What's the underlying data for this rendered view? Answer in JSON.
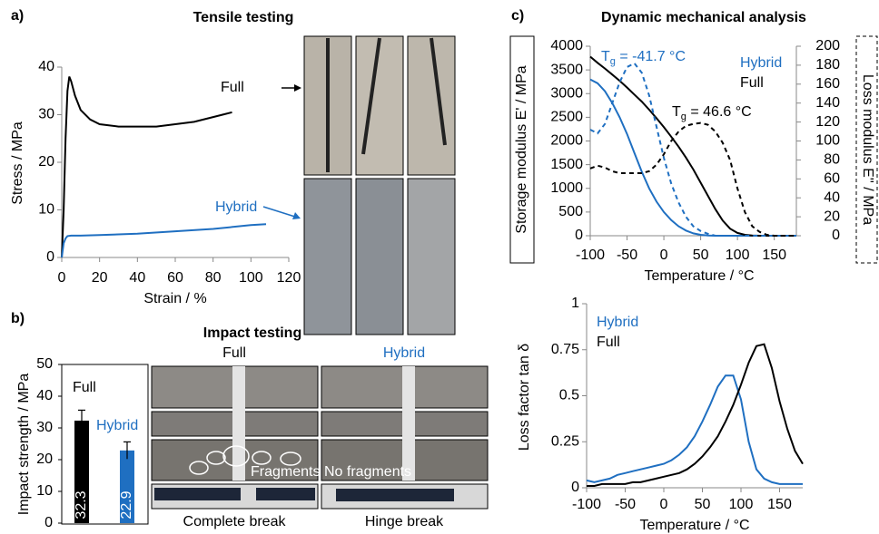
{
  "chart_data": [
    {
      "type": "line",
      "panel": "a)",
      "title": "Tensile testing",
      "xlabel": "Strain / %",
      "ylabel": "Stress / MPa",
      "xlim": [
        0,
        120
      ],
      "xticks": [
        0,
        20,
        40,
        60,
        80,
        100,
        120
      ],
      "ylim": [
        0,
        40
      ],
      "yticks": [
        0,
        10,
        20,
        30,
        40
      ],
      "series": [
        {
          "name": "Full",
          "color": "#000000",
          "x": [
            0,
            1,
            2,
            3,
            4,
            5,
            7,
            10,
            15,
            20,
            30,
            40,
            50,
            60,
            70,
            80,
            85,
            90
          ],
          "values": [
            0,
            10,
            25,
            35,
            38,
            37,
            34,
            31,
            29,
            28,
            27.5,
            27.5,
            27.5,
            28,
            28.5,
            29.5,
            30,
            30.5
          ]
        },
        {
          "name": "Hybrid",
          "color": "#1f6fc1",
          "x": [
            0,
            1,
            2,
            3,
            5,
            10,
            20,
            40,
            60,
            80,
            100,
            108
          ],
          "values": [
            0,
            3,
            4,
            4.5,
            4.6,
            4.6,
            4.7,
            5,
            5.5,
            6,
            6.8,
            7
          ]
        }
      ]
    },
    {
      "type": "bar",
      "panel": "b)",
      "title": "Impact testing",
      "ylabel": "Impact strength / MPa",
      "categories": [
        "Full",
        "Hybrid"
      ],
      "values": [
        32.3,
        22.9
      ],
      "errors": [
        3.3,
        2.7
      ],
      "colors": [
        "#000000",
        "#1f6fc1"
      ],
      "ylim": [
        0,
        50
      ],
      "yticks": [
        0,
        10,
        20,
        30,
        40,
        50
      ],
      "photo_labels": {
        "columns": [
          "Full",
          "Hybrid"
        ],
        "fragments": [
          "Fragments",
          "No fragments"
        ],
        "captions": [
          "Complete break",
          "Hinge break"
        ]
      }
    },
    {
      "type": "line",
      "panel": "c)",
      "title": "Dynamic mechanical analysis",
      "xlabel": "Temperature / °C",
      "ylabel": "Storage modulus E' / MPa",
      "y2label": "Loss modulus E'' / MPa",
      "x": [
        -100,
        -90,
        -80,
        -70,
        -60,
        -50,
        -40,
        -30,
        -20,
        -10,
        0,
        10,
        20,
        30,
        40,
        50,
        60,
        70,
        80,
        90,
        100,
        110,
        120,
        130,
        140,
        150,
        160,
        170,
        180
      ],
      "xlim": [
        -100,
        180
      ],
      "xticks": [
        -100,
        -50,
        0,
        50,
        100,
        150
      ],
      "ylim": [
        0,
        4000
      ],
      "yticks": [
        0,
        500,
        1000,
        1500,
        2000,
        2500,
        3000,
        3500,
        4000
      ],
      "y2lim": [
        0,
        200
      ],
      "y2ticks": [
        0,
        20,
        40,
        60,
        80,
        100,
        120,
        140,
        160,
        180,
        200
      ],
      "series": [
        {
          "name": "Hybrid",
          "color": "#1f6fc1",
          "values": [
            3300,
            3220,
            3050,
            2800,
            2500,
            2150,
            1750,
            1350,
            1000,
            720,
            500,
            330,
            200,
            110,
            50,
            20,
            5,
            0,
            0,
            0,
            0,
            0,
            0,
            0,
            0,
            0,
            0,
            0,
            0
          ]
        },
        {
          "name": "Full",
          "color": "#000000",
          "values": [
            3780,
            3650,
            3530,
            3400,
            3270,
            3130,
            2980,
            2830,
            2660,
            2480,
            2290,
            2090,
            1880,
            1650,
            1400,
            1120,
            840,
            560,
            320,
            150,
            60,
            20,
            5,
            0,
            0,
            0,
            0,
            0,
            0
          ]
        },
        {
          "color": "#1f6fc1",
          "dash": true,
          "axis": "y2",
          "values": [
            112,
            108,
            118,
            140,
            162,
            178,
            182,
            172,
            148,
            115,
            82,
            55,
            35,
            20,
            10,
            5,
            2,
            0,
            0,
            0,
            0,
            0,
            0,
            0,
            0,
            0,
            0,
            0,
            0
          ]
        },
        {
          "color": "#000000",
          "dash": true,
          "axis": "y2",
          "values": [
            71,
            74,
            72,
            68,
            66,
            66,
            66,
            66,
            68,
            75,
            86,
            100,
            110,
            116,
            118,
            119,
            117,
            110,
            98,
            80,
            50,
            25,
            10,
            4,
            1,
            0,
            0,
            0,
            0
          ]
        }
      ],
      "annotations": [
        {
          "text": "T",
          "sub": "g",
          "rest": " = -41.7 °C",
          "color": "#1f6fc1"
        },
        {
          "text": "T",
          "sub": "g",
          "rest": " = 46.6 °C",
          "color": "#000000"
        }
      ]
    },
    {
      "type": "line",
      "xlabel": "Temperature / °C",
      "ylabel": "Loss factor tan δ",
      "x": [
        -100,
        -90,
        -80,
        -70,
        -60,
        -50,
        -40,
        -30,
        -20,
        -10,
        0,
        10,
        20,
        30,
        40,
        50,
        60,
        70,
        80,
        90,
        100,
        110,
        120,
        130,
        140,
        150,
        160,
        170,
        180
      ],
      "xlim": [
        -100,
        180
      ],
      "xticks": [
        -100,
        -50,
        0,
        50,
        100,
        150
      ],
      "ylim": [
        0,
        1
      ],
      "yticks": [
        0,
        0.25,
        0.5,
        0.75,
        1
      ],
      "series": [
        {
          "name": "Hybrid",
          "color": "#1f6fc1",
          "values": [
            0.04,
            0.03,
            0.04,
            0.05,
            0.07,
            0.08,
            0.09,
            0.1,
            0.11,
            0.12,
            0.13,
            0.15,
            0.18,
            0.22,
            0.28,
            0.36,
            0.45,
            0.55,
            0.61,
            0.61,
            0.48,
            0.25,
            0.1,
            0.05,
            0.03,
            0.02,
            0.02,
            0.02,
            0.02
          ]
        },
        {
          "name": "Full",
          "color": "#000000",
          "values": [
            0.01,
            0.01,
            0.02,
            0.02,
            0.02,
            0.02,
            0.03,
            0.03,
            0.04,
            0.05,
            0.06,
            0.07,
            0.08,
            0.1,
            0.13,
            0.17,
            0.22,
            0.28,
            0.36,
            0.45,
            0.56,
            0.68,
            0.77,
            0.78,
            0.65,
            0.47,
            0.32,
            0.2,
            0.13
          ]
        }
      ]
    }
  ]
}
